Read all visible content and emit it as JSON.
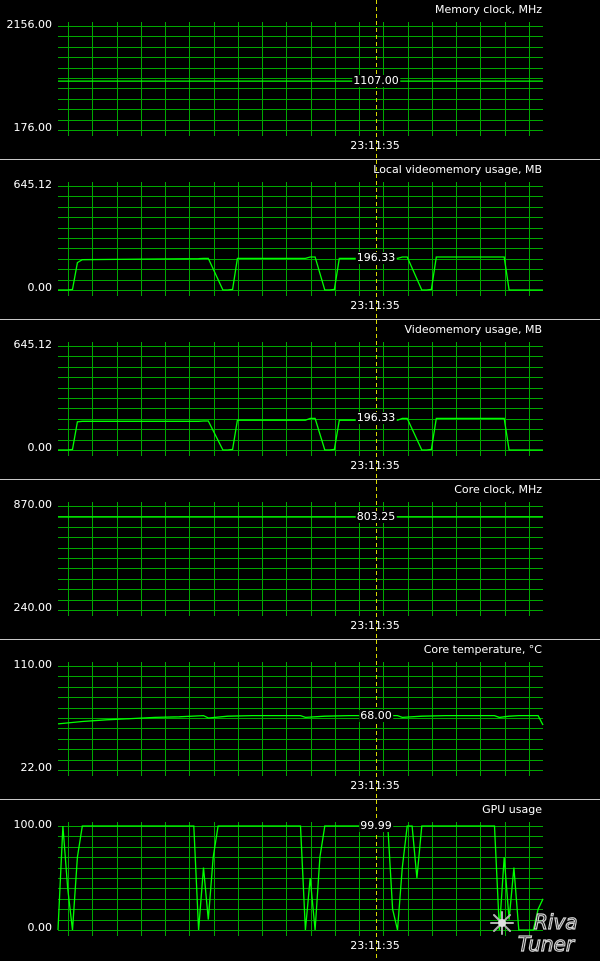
{
  "time_label": "23:11:35",
  "colors": {
    "grid": "#00a800",
    "line": "#00ff00",
    "cursor": "#d8d800",
    "background": "#000000"
  },
  "logo": {
    "name": "rivatuner-logo",
    "text": "RivaTuner"
  },
  "chart_data": [
    {
      "type": "line",
      "title": "Memory clock, MHz",
      "ymax_label": "2156.00",
      "ymin_label": "176.00",
      "ylim": [
        176,
        2156
      ],
      "current_value": 1107,
      "current_label": "1107.00",
      "series": [
        {
          "x": [
            0,
            100
          ],
          "y": [
            1107,
            1107
          ]
        }
      ]
    },
    {
      "type": "line",
      "title": "Local videomemory usage, MB",
      "ymax_label": "645.12",
      "ymin_label": "0.00",
      "ylim": [
        0,
        645.12
      ],
      "current_value": 196.33,
      "current_label": "196.33",
      "series": [
        {
          "x": [
            0,
            2,
            3,
            4,
            5,
            29,
            30,
            31,
            34,
            35,
            36,
            37,
            51,
            52,
            53,
            55,
            56,
            57,
            58,
            70,
            71,
            72,
            75,
            76,
            77,
            78,
            92,
            93,
            94,
            100
          ],
          "y": [
            0,
            0,
            4,
            170,
            188,
            195,
            196,
            196,
            0,
            0,
            4,
            196,
            196,
            205,
            205,
            0,
            0,
            4,
            196,
            196,
            205,
            205,
            0,
            0,
            4,
            205,
            205,
            0,
            0,
            0
          ]
        }
      ]
    },
    {
      "type": "line",
      "title": "Videomemory usage, MB",
      "ymax_label": "645.12",
      "ymin_label": "0.00",
      "ylim": [
        0,
        645.12
      ],
      "current_value": 196.33,
      "current_label": "196.33",
      "series": [
        {
          "x": [
            0,
            2,
            3,
            4,
            5,
            29,
            30,
            31,
            34,
            35,
            36,
            37,
            51,
            52,
            53,
            55,
            56,
            57,
            58,
            70,
            71,
            72,
            75,
            76,
            77,
            78,
            92,
            93,
            94,
            100
          ],
          "y": [
            0,
            0,
            4,
            175,
            178,
            178,
            180,
            180,
            0,
            0,
            4,
            185,
            185,
            196,
            196,
            0,
            0,
            4,
            185,
            185,
            196,
            196,
            0,
            0,
            4,
            196,
            196,
            0,
            0,
            0
          ]
        }
      ]
    },
    {
      "type": "line",
      "title": "Core clock, MHz",
      "ymax_label": "870.00",
      "ymin_label": "240.00",
      "ylim": [
        240,
        870
      ],
      "current_value": 803.25,
      "current_label": "803.25",
      "series": [
        {
          "x": [
            0,
            100
          ],
          "y": [
            803.25,
            803.25
          ]
        }
      ]
    },
    {
      "type": "line",
      "title": "Core temperature, °C",
      "ymax_label": "110.00",
      "ymin_label": "22.00",
      "ylim": [
        22,
        110
      ],
      "current_value": 68,
      "current_label": "68.00",
      "series": [
        {
          "x": [
            0,
            5,
            10,
            15,
            20,
            25,
            30,
            31,
            35,
            40,
            45,
            50,
            51,
            55,
            60,
            65,
            70,
            71,
            75,
            80,
            85,
            90,
            91,
            93,
            95,
            99,
            100
          ],
          "y": [
            61,
            63,
            64.5,
            65.5,
            66.5,
            67,
            68,
            66,
            67.5,
            68,
            68,
            68,
            66.5,
            67.5,
            68,
            68,
            68,
            66.5,
            67.5,
            68,
            68,
            68,
            66.5,
            67.5,
            68,
            68,
            60
          ]
        }
      ]
    },
    {
      "type": "line",
      "title": "GPU usage",
      "ymax_label": "100.00",
      "ymin_label": "0.00",
      "ylim": [
        0,
        100
      ],
      "current_value": 99.99,
      "current_label": "99.99",
      "series": [
        {
          "x": [
            0,
            1,
            2,
            3,
            4,
            5,
            6,
            28,
            29,
            30,
            31,
            32,
            33,
            34,
            50,
            51,
            52,
            53,
            54,
            55,
            56,
            68,
            69,
            70,
            71,
            72,
            73,
            74,
            75,
            76,
            90,
            91,
            92,
            93,
            94,
            95,
            96,
            98,
            99,
            100
          ],
          "y": [
            0,
            100,
            40,
            0,
            70,
            100,
            100,
            100,
            0,
            60,
            10,
            70,
            100,
            100,
            100,
            0,
            50,
            0,
            70,
            100,
            100,
            100,
            20,
            0,
            60,
            100,
            100,
            50,
            100,
            100,
            100,
            0,
            70,
            10,
            60,
            0,
            0,
            0,
            20,
            30
          ]
        }
      ]
    }
  ]
}
